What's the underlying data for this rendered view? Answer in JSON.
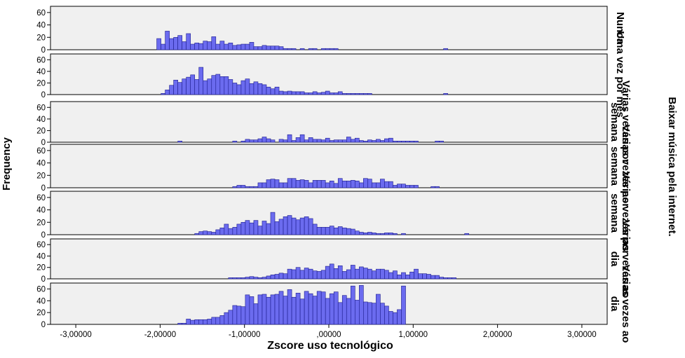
{
  "chart_data": {
    "type": "bar",
    "subtype": "faceted-histogram",
    "xlabel": "Zscore uso tecnológico",
    "ylabel": "Frequency",
    "facet_title": "Baixar música pela internet.",
    "xlim": [
      -3.3,
      3.3
    ],
    "ylim": [
      0,
      70
    ],
    "x_ticks": [
      {
        "value": -3,
        "label": "-3,00000"
      },
      {
        "value": -2,
        "label": "-2,00000"
      },
      {
        "value": -1,
        "label": "-1,00000"
      },
      {
        "value": 0,
        "label": ",00000"
      },
      {
        "value": 1,
        "label": "1,00000"
      },
      {
        "value": 2,
        "label": "2,00000"
      },
      {
        "value": 3,
        "label": "3,00000"
      }
    ],
    "y_ticks": [
      0,
      20,
      40,
      60
    ],
    "bin_start": -2.04,
    "bin_width": 0.05,
    "grid": false,
    "bar_color": "#6b6bef",
    "bar_edge_color": "#1c1c8c",
    "panel_background": "#f0f0f0",
    "series": [
      {
        "name": "Nunca",
        "label_lines": [
          "Nunca"
        ],
        "values": [
          18,
          9,
          30,
          18,
          20,
          23,
          13,
          26,
          9,
          11,
          10,
          14,
          13,
          21,
          9,
          14,
          9,
          11,
          7,
          8,
          9,
          9,
          12,
          5,
          5,
          7,
          6,
          6,
          6,
          5,
          2,
          2,
          2,
          0,
          2,
          0,
          2,
          2,
          0,
          2,
          2,
          2,
          2,
          0,
          0,
          0,
          0,
          0,
          0,
          0,
          0,
          0,
          0,
          0,
          0,
          0,
          0,
          0,
          0,
          0,
          0,
          0,
          0,
          0,
          0,
          0,
          0,
          0,
          2
        ]
      },
      {
        "name": "Uma vez por mês",
        "label_lines": [
          "Uma vez por mês"
        ],
        "values": [
          0,
          2,
          8,
          16,
          25,
          21,
          27,
          30,
          34,
          26,
          47,
          24,
          27,
          33,
          35,
          31,
          31,
          26,
          20,
          17,
          24,
          27,
          19,
          22,
          19,
          17,
          13,
          10,
          13,
          6,
          5,
          6,
          5,
          5,
          5,
          3,
          3,
          5,
          3,
          4,
          6,
          3,
          3,
          5,
          2,
          2,
          2,
          2,
          2,
          2,
          2,
          0,
          0,
          0,
          0,
          0,
          0,
          0,
          0,
          0,
          0,
          0,
          0,
          0,
          0,
          0,
          0,
          0,
          2
        ]
      },
      {
        "name": "Várias vezes por semana",
        "label_lines": [
          "Várias vezes por",
          "semana"
        ],
        "values": [
          0,
          0,
          0,
          0,
          0,
          2,
          0,
          0,
          0,
          0,
          0,
          0,
          0,
          0,
          0,
          0,
          0,
          0,
          2,
          0,
          2,
          5,
          4,
          4,
          6,
          9,
          6,
          4,
          0,
          5,
          4,
          13,
          3,
          8,
          13,
          4,
          8,
          5,
          5,
          4,
          7,
          3,
          4,
          4,
          4,
          9,
          5,
          7,
          3,
          2,
          4,
          3,
          5,
          3,
          6,
          7,
          2,
          2,
          2,
          2,
          2,
          2,
          0,
          0,
          0,
          0,
          2,
          2
        ]
      },
      {
        "name": "Várias vezes por semana",
        "label_lines": [
          "Várias vezes por",
          "semana"
        ],
        "values": [
          0,
          0,
          0,
          0,
          0,
          0,
          0,
          0,
          0,
          0,
          0,
          0,
          0,
          0,
          0,
          0,
          0,
          0,
          2,
          4,
          4,
          2,
          2,
          2,
          8,
          8,
          13,
          14,
          13,
          8,
          8,
          15,
          15,
          12,
          13,
          12,
          8,
          12,
          12,
          12,
          8,
          11,
          7,
          15,
          11,
          11,
          12,
          11,
          8,
          15,
          14,
          8,
          8,
          14,
          10,
          10,
          4,
          6,
          6,
          4,
          4,
          4,
          0,
          0,
          0,
          2,
          2,
          0,
          0
        ]
      },
      {
        "name": "Várias vezes por semana",
        "label_lines": [
          "Várias vezes por",
          "semana"
        ],
        "values": [
          0,
          0,
          0,
          0,
          0,
          0,
          0,
          0,
          0,
          2,
          5,
          6,
          5,
          4,
          8,
          11,
          17,
          10,
          12,
          17,
          20,
          23,
          19,
          23,
          14,
          22,
          18,
          36,
          21,
          25,
          29,
          31,
          27,
          24,
          27,
          29,
          26,
          17,
          12,
          12,
          12,
          14,
          11,
          13,
          11,
          10,
          9,
          6,
          4,
          3,
          4,
          3,
          2,
          2,
          3,
          3,
          2,
          0,
          2,
          0,
          0,
          0,
          0,
          0,
          0,
          0,
          0,
          0,
          0,
          0,
          0,
          0,
          0,
          2
        ]
      },
      {
        "name": "Várias vezes ao dia",
        "label_lines": [
          "Várias vezes ao",
          "dia"
        ],
        "values": [
          0,
          0,
          0,
          0,
          0,
          0,
          0,
          0,
          0,
          0,
          0,
          0,
          0,
          0,
          0,
          0,
          0,
          2,
          2,
          2,
          2,
          3,
          4,
          3,
          2,
          3,
          5,
          7,
          8,
          10,
          9,
          17,
          16,
          20,
          15,
          19,
          17,
          14,
          13,
          15,
          22,
          26,
          18,
          23,
          13,
          16,
          24,
          17,
          21,
          19,
          17,
          14,
          17,
          17,
          15,
          11,
          14,
          7,
          11,
          7,
          12,
          17,
          9,
          9,
          8,
          6,
          6,
          3,
          2,
          2,
          2
        ]
      },
      {
        "name": "Várias vezes ao dia",
        "label_lines": [
          "Várias vezes ao",
          "dia"
        ],
        "values": [
          0,
          0,
          0,
          0,
          0,
          2,
          2,
          9,
          7,
          8,
          8,
          8,
          9,
          12,
          12,
          15,
          20,
          24,
          32,
          31,
          30,
          50,
          47,
          35,
          50,
          51,
          46,
          50,
          51,
          56,
          48,
          59,
          46,
          53,
          43,
          56,
          52,
          48,
          56,
          55,
          44,
          52,
          55,
          37,
          49,
          44,
          65,
          41,
          66,
          38,
          37,
          36,
          51,
          36,
          31,
          22,
          20,
          25,
          65
        ]
      }
    ]
  }
}
